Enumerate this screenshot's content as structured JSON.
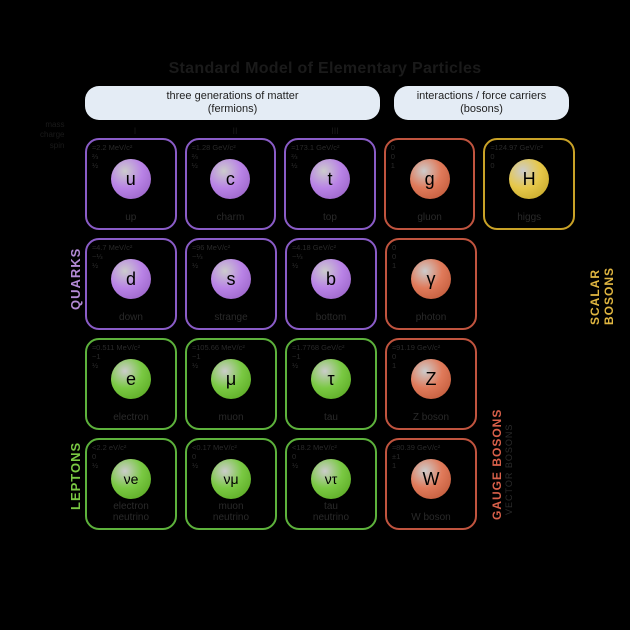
{
  "title": "Standard Model of Elementary Particles",
  "headers": {
    "fermions": "three generations of matter\n(fermions)",
    "bosons": "interactions / force carriers\n(bosons)"
  },
  "generations": [
    "I",
    "II",
    "III"
  ],
  "prop_labels": [
    "mass",
    "charge",
    "spin"
  ],
  "side_labels": {
    "quarks": "QUARKS",
    "leptons": "LEPTONS",
    "gauge": "GAUGE BOSONS",
    "vector": "VECTOR BOSONS",
    "scalar": "SCALAR BOSONS"
  },
  "colors": {
    "quark_border": "#8a5cc7",
    "quark_sphere": "#b983e6",
    "lepton_border": "#5db23c",
    "lepton_sphere": "#7ac943",
    "gauge_border": "#c0543f",
    "gauge_sphere": "#e07a5a",
    "scalar_border": "#c9a227",
    "scalar_sphere": "#e6c84a"
  },
  "particles": {
    "r0": [
      {
        "sym": "u",
        "name": "up",
        "mass": "≈2.2 MeV/c²",
        "charge": "⅔",
        "spin": "½",
        "group": "quark"
      },
      {
        "sym": "c",
        "name": "charm",
        "mass": "≈1.28 GeV/c²",
        "charge": "⅔",
        "spin": "½",
        "group": "quark"
      },
      {
        "sym": "t",
        "name": "top",
        "mass": "≈173.1 GeV/c²",
        "charge": "⅔",
        "spin": "½",
        "group": "quark"
      },
      {
        "sym": "g",
        "name": "gluon",
        "mass": "0",
        "charge": "0",
        "spin": "1",
        "group": "gauge"
      },
      {
        "sym": "H",
        "name": "higgs",
        "mass": "≈124.97 GeV/c²",
        "charge": "0",
        "spin": "0",
        "group": "scalar"
      }
    ],
    "r1": [
      {
        "sym": "d",
        "name": "down",
        "mass": "≈4.7 MeV/c²",
        "charge": "−⅓",
        "spin": "½",
        "group": "quark"
      },
      {
        "sym": "s",
        "name": "strange",
        "mass": "≈96 MeV/c²",
        "charge": "−⅓",
        "spin": "½",
        "group": "quark"
      },
      {
        "sym": "b",
        "name": "bottom",
        "mass": "≈4.18 GeV/c²",
        "charge": "−⅓",
        "spin": "½",
        "group": "quark"
      },
      {
        "sym": "γ",
        "name": "photon",
        "mass": "0",
        "charge": "0",
        "spin": "1",
        "group": "gauge"
      }
    ],
    "r2": [
      {
        "sym": "e",
        "name": "electron",
        "mass": "≈0.511 MeV/c²",
        "charge": "−1",
        "spin": "½",
        "group": "lepton"
      },
      {
        "sym": "μ",
        "name": "muon",
        "mass": "≈105.66 MeV/c²",
        "charge": "−1",
        "spin": "½",
        "group": "lepton"
      },
      {
        "sym": "τ",
        "name": "tau",
        "mass": "≈1.7768 GeV/c²",
        "charge": "−1",
        "spin": "½",
        "group": "lepton"
      },
      {
        "sym": "Z",
        "name": "Z boson",
        "mass": "≈91.19 GeV/c²",
        "charge": "0",
        "spin": "1",
        "group": "gauge"
      }
    ],
    "r3": [
      {
        "sym": "νe",
        "name": "electron\nneutrino",
        "mass": "<2.2 eV/c²",
        "charge": "0",
        "spin": "½",
        "group": "lepton"
      },
      {
        "sym": "νμ",
        "name": "muon\nneutrino",
        "mass": "<0.17 MeV/c²",
        "charge": "0",
        "spin": "½",
        "group": "lepton"
      },
      {
        "sym": "ντ",
        "name": "tau\nneutrino",
        "mass": "<18.2 MeV/c²",
        "charge": "0",
        "spin": "½",
        "group": "lepton"
      },
      {
        "sym": "W",
        "name": "W boson",
        "mass": "≈80.39 GeV/c²",
        "charge": "±1",
        "spin": "1",
        "group": "gauge"
      }
    ]
  }
}
